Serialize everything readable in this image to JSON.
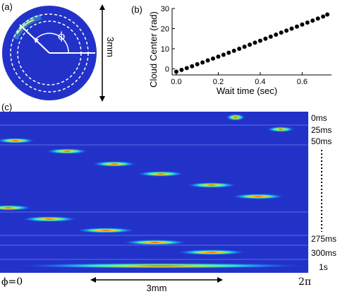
{
  "panel_a": {
    "label": "(a)",
    "angle_symbol": "ϕ",
    "scale_label": "3mm"
  },
  "panel_b": {
    "label": "(b)"
  },
  "panel_c": {
    "label": "(c)",
    "time_labels": [
      "0ms",
      "25ms",
      "50ms",
      "275ms",
      "300ms",
      "1s"
    ],
    "phi_start": "ϕ=0",
    "phi_end": "2π",
    "scale_label": "3mm"
  },
  "colors": {
    "background_blue": "#2232c8",
    "ring_dashes": "#ffffff",
    "markers": "#000000"
  },
  "chart_data": {
    "type": "scatter",
    "xlabel": "Wait time (sec)",
    "ylabel": "Cloud Center (rad)",
    "xlim": [
      -0.02,
      0.74
    ],
    "ylim": [
      -3,
      30
    ],
    "xticks": [
      "0.0",
      "0.2",
      "0.4",
      "0.6"
    ],
    "yticks": [
      "0",
      "10",
      "20",
      "30"
    ],
    "points": [
      [
        0.0,
        -1.4
      ],
      [
        0.025,
        -0.5
      ],
      [
        0.05,
        0.4
      ],
      [
        0.075,
        1.3
      ],
      [
        0.1,
        2.3
      ],
      [
        0.125,
        3.2
      ],
      [
        0.15,
        4.2
      ],
      [
        0.175,
        5.1
      ],
      [
        0.2,
        6.1
      ],
      [
        0.225,
        7.0
      ],
      [
        0.25,
        8.0
      ],
      [
        0.275,
        9.0
      ],
      [
        0.3,
        10.0
      ],
      [
        0.325,
        11.0
      ],
      [
        0.35,
        12.0
      ],
      [
        0.375,
        13.0
      ],
      [
        0.4,
        14.0
      ],
      [
        0.425,
        15.0
      ],
      [
        0.45,
        16.0
      ],
      [
        0.475,
        17.0
      ],
      [
        0.5,
        18.0
      ],
      [
        0.525,
        19.0
      ],
      [
        0.55,
        20.0
      ],
      [
        0.575,
        21.0
      ],
      [
        0.6,
        22.0
      ],
      [
        0.625,
        23.0
      ],
      [
        0.65,
        24.0
      ],
      [
        0.675,
        25.0
      ],
      [
        0.7,
        26.0
      ],
      [
        0.72,
        27.0
      ]
    ]
  }
}
